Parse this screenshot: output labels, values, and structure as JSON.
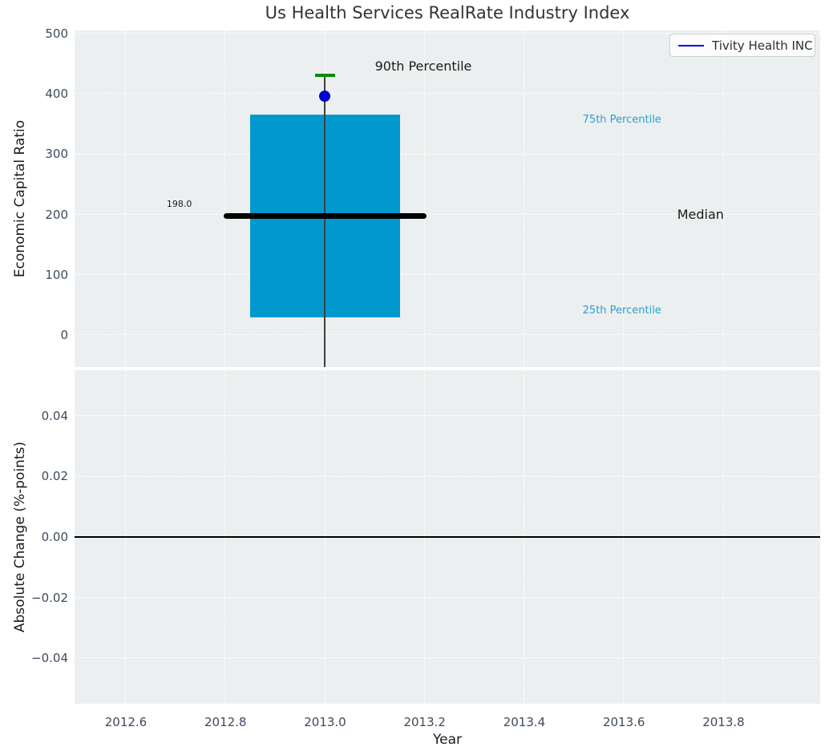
{
  "figure": {
    "title": "Us Health Services RealRate Industry Index",
    "panel_bg": "#eceff0",
    "tick_label_color": "#3e4a5c"
  },
  "legend": {
    "label": "Tivity Health INC",
    "line_color": "#0000dd"
  },
  "chart_data": [
    {
      "id": "economic-capital-ratio",
      "type": "box",
      "title": "Us Health Services RealRate Industry Index",
      "ylabel": "Economic Capital Ratio",
      "xlim": [
        2012.497,
        2013.994
      ],
      "ylim": [
        -53,
        505
      ],
      "grid": true,
      "legend_position": "upper right",
      "yticks": {
        "values": [
          0,
          100,
          200,
          300,
          400,
          500
        ],
        "labels": [
          "0",
          "100",
          "200",
          "300",
          "400",
          "500"
        ]
      },
      "xticks": {
        "values": [
          2012.6,
          2012.8,
          2013.0,
          2013.2,
          2013.4,
          2013.6,
          2013.8
        ],
        "labels": [
          "2012.6",
          "2012.8",
          "2013.0",
          "2013.2",
          "2013.4",
          "2013.6",
          "2013.8"
        ],
        "show_labels": false
      },
      "box": {
        "x": 2013.0,
        "p25": 30,
        "median": 198,
        "p75": 365,
        "p90": 430,
        "box_halfwidth": 0.15,
        "median_halfwidth": 0.204,
        "p90_halfwidth": 0.02,
        "box_color": "#0099cd",
        "median_color": "#000000",
        "whisker_color": "#3f3f3f",
        "p90_color": "#0a8a0a"
      },
      "marker": {
        "name": "Tivity Health INC",
        "x": 2013.0,
        "y": 396,
        "color": "#0000cd"
      },
      "annotations": [
        {
          "text": "90th Percentile",
          "x": 2013.1,
          "y": 443,
          "color": "#1a1a1a",
          "size": 16
        },
        {
          "text": "75th Percentile",
          "x": 2013.517,
          "y": 355,
          "color": "#29a0cf",
          "size": 13
        },
        {
          "text": "Median",
          "x": 2013.707,
          "y": 197,
          "color": "#1a1a1a",
          "size": 16
        },
        {
          "text": "25th Percentile",
          "x": 2013.517,
          "y": 38,
          "color": "#29a0cf",
          "size": 13
        },
        {
          "text": "198.0",
          "x": 2012.682,
          "y": 215,
          "color": "#1a1a1a",
          "size": 11
        }
      ]
    },
    {
      "id": "absolute-change",
      "type": "line",
      "ylabel": "Absolute Change (%-points)",
      "xlabel": "Year",
      "xlim": [
        2012.497,
        2013.994
      ],
      "ylim": [
        -0.055,
        0.055
      ],
      "grid": true,
      "yticks": {
        "values": [
          0.04,
          0.02,
          0.0,
          -0.02,
          -0.04
        ],
        "labels": [
          "0.04",
          "0.02",
          "0.00",
          "−0.02",
          "−0.04"
        ]
      },
      "xticks": {
        "values": [
          2012.6,
          2012.8,
          2013.0,
          2013.2,
          2013.4,
          2013.6,
          2013.8
        ],
        "labels": [
          "2012.6",
          "2012.8",
          "2013.0",
          "2013.2",
          "2013.4",
          "2013.6",
          "2013.8"
        ],
        "show_labels": true
      },
      "zero_line": {
        "y": 0.0,
        "color": "#000000"
      },
      "series": []
    }
  ]
}
